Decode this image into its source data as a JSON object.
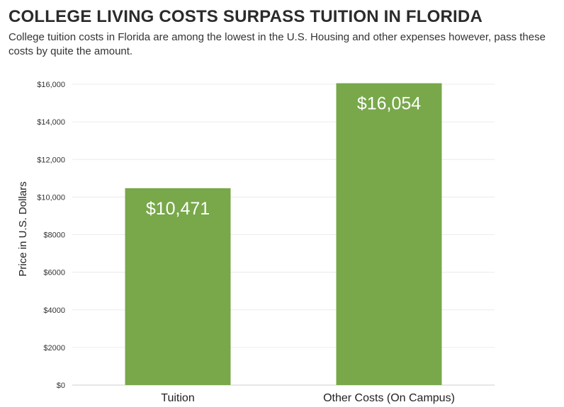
{
  "header": {
    "title": "COLLEGE LIVING COSTS SURPASS TUITION IN FLORIDA",
    "subtitle": "College tuition costs in Florida are among the lowest in the U.S. Housing and other expenses however, pass these costs by quite the amount."
  },
  "chart_data": {
    "type": "bar",
    "title": "COLLEGE LIVING COSTS SURPASS TUITION IN FLORIDA",
    "subtitle": "College tuition costs in Florida are among the lowest in the U.S. Housing and other expenses however, pass these costs by quite the amount.",
    "xlabel": "",
    "ylabel": "Price in U.S. Dollars",
    "categories": [
      "Tuition",
      "Other Costs (On Campus)"
    ],
    "values": [
      10471,
      16054
    ],
    "data_labels": [
      "$10,471",
      "$16,054"
    ],
    "ylim": [
      0,
      16000
    ],
    "yticks": [
      0,
      2000,
      4000,
      6000,
      8000,
      10000,
      12000,
      14000,
      16000
    ],
    "ytick_labels": [
      "$0",
      "$2000",
      "$4000",
      "$6000",
      "$8000",
      "$10,000",
      "$12,000",
      "$14,000",
      "$16,000"
    ],
    "grid": true,
    "legend": "none",
    "bar_color": "#78a84a"
  }
}
